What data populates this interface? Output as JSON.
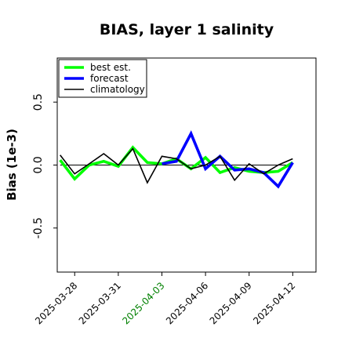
{
  "chart_data": {
    "type": "line",
    "title": "BIAS, layer 1 salinity",
    "xlabel": "",
    "ylabel": "Bias (1e-3)",
    "ylim": [
      -0.85,
      0.85
    ],
    "yticks": [
      -0.5,
      0.0,
      0.5
    ],
    "ytick_labels": [
      "-0.5",
      "0.0",
      "0.5"
    ],
    "xlim": [
      -1.2,
      16.6
    ],
    "xticks": [
      0,
      3,
      6,
      9,
      12,
      15
    ],
    "xtick_labels": [
      "2025-03-28",
      "2025-03-31",
      "2025-04-03",
      "2025-04-06",
      "2025-04-09",
      "2025-04-12"
    ],
    "highlight_tick": "2025-04-03",
    "highlight_color": "#008000",
    "zero_line": true,
    "grid": false,
    "legend_position": "top-left",
    "x": [
      -1,
      0,
      1,
      2,
      3,
      4,
      5,
      6,
      7,
      8,
      9,
      10,
      11,
      12,
      13,
      14,
      15
    ],
    "series": [
      {
        "name": "best est.",
        "color": "#00ff00",
        "values": [
          0.04,
          -0.11,
          0.0,
          0.03,
          -0.01,
          0.14,
          0.02,
          0.01,
          0.05,
          -0.03,
          0.06,
          -0.06,
          -0.02,
          -0.05,
          -0.06,
          -0.05,
          0.02
        ]
      },
      {
        "name": "forecast",
        "color": "#0000ff",
        "values": [
          null,
          null,
          null,
          null,
          null,
          null,
          null,
          0.01,
          0.03,
          0.25,
          -0.03,
          0.07,
          -0.04,
          -0.03,
          -0.06,
          -0.17,
          0.02
        ]
      },
      {
        "name": "climatology",
        "color": "#000000",
        "values": [
          0.08,
          -0.07,
          0.01,
          0.09,
          0.0,
          0.13,
          -0.14,
          0.07,
          0.05,
          -0.03,
          0.0,
          0.07,
          -0.12,
          0.01,
          -0.07,
          0.0,
          0.05
        ]
      }
    ]
  }
}
